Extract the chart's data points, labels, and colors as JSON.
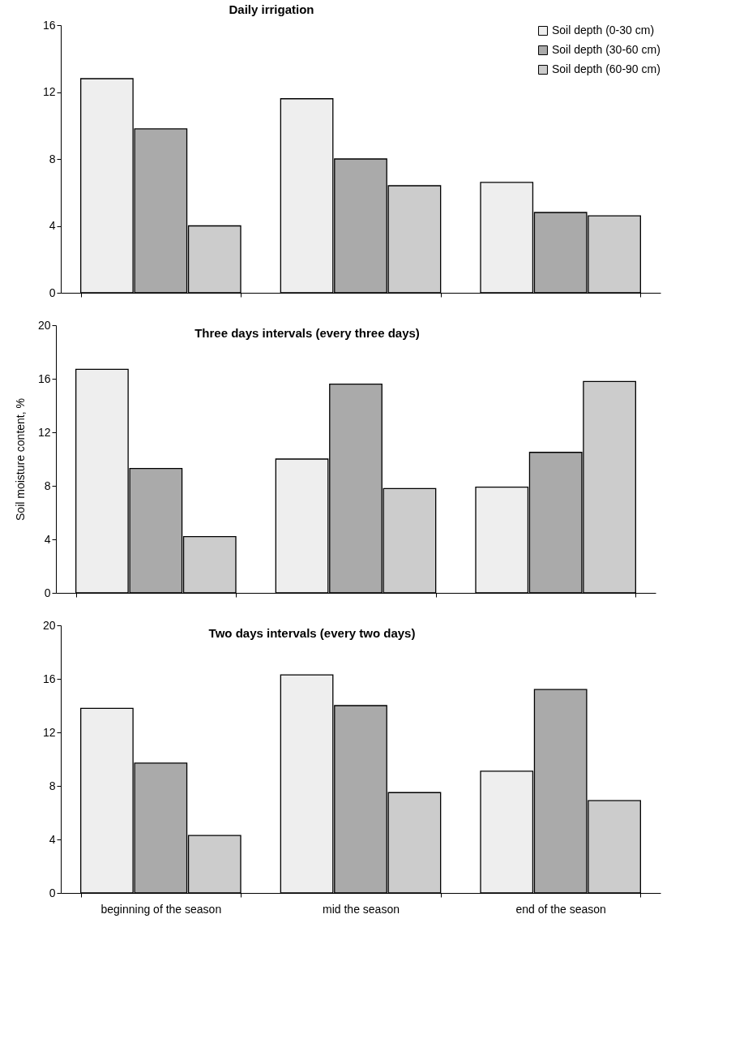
{
  "chart_data": [
    {
      "type": "bar",
      "title": "Daily irrigation",
      "categories": [
        null,
        null,
        null
      ],
      "series": [
        {
          "name": "Soil depth (0-30 cm)",
          "color": "#eeeeee",
          "values": [
            12.8,
            11.6,
            6.6
          ]
        },
        {
          "name": "Soil depth (30-60 cm)",
          "color": "#aaaaaa",
          "values": [
            9.8,
            8.0,
            4.8
          ]
        },
        {
          "name": "Soil depth (60-90 cm)",
          "color": "#cccccc",
          "values": [
            4.0,
            6.4,
            4.6
          ]
        }
      ],
      "ylim": [
        0,
        16
      ],
      "yticks": [
        0,
        4,
        8,
        12,
        16
      ],
      "grid": false,
      "legend": "top right",
      "tick_labels": "y"
    },
    {
      "type": "bar",
      "title": "Three days intervals (every three days)",
      "ylabel": "Soil moisture content, %",
      "categories": [
        null,
        null,
        null
      ],
      "series": [
        {
          "color": "#eeeeee",
          "values": [
            16.7,
            10.0,
            7.9
          ]
        },
        {
          "color": "#aaaaaa",
          "values": [
            9.3,
            15.6,
            10.5
          ]
        },
        {
          "color": "#cccccc",
          "values": [
            4.2,
            7.8,
            15.8
          ]
        }
      ],
      "ylim": [
        0,
        20
      ],
      "yticks": [
        0,
        4,
        8,
        12,
        16,
        20
      ],
      "grid": false,
      "tick_labels": "y"
    },
    {
      "type": "bar",
      "title": "Two days intervals (every two days)",
      "categories": [
        "beginning of the season",
        "mid the season",
        "end of the season"
      ],
      "series": [
        {
          "color": "#eeeeee",
          "values": [
            13.8,
            16.3,
            9.1
          ]
        },
        {
          "color": "#aaaaaa",
          "values": [
            9.7,
            14.0,
            15.2
          ]
        },
        {
          "color": "#cccccc",
          "values": [
            4.3,
            7.5,
            6.9
          ]
        }
      ],
      "ylim": [
        0,
        20
      ],
      "yticks": [
        0,
        4,
        8,
        12,
        16,
        20
      ],
      "grid": false
    }
  ]
}
